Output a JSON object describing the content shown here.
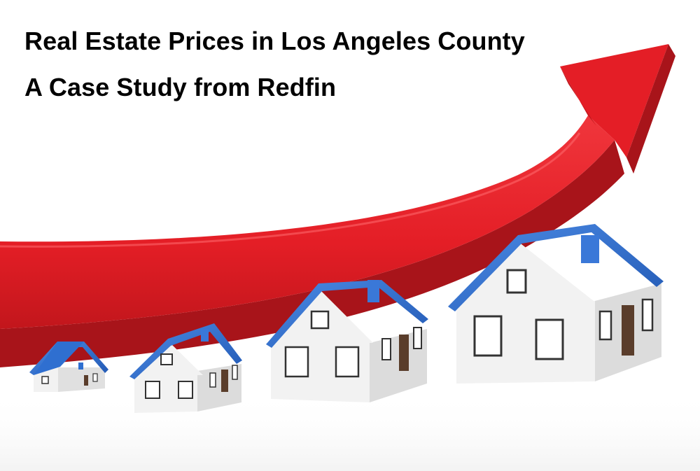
{
  "title": {
    "line1": "Real Estate Prices in Los Angeles County",
    "line2": "A Case Study from Redfin"
  },
  "colors": {
    "arrow": "#e41e26",
    "arrow_dark": "#a8141a",
    "roof": "#2f6fd0",
    "roof_dark": "#1f4e9c",
    "wall_front": "#f2f2f2",
    "wall_side": "#d9d9d9",
    "door": "#5a3d2b",
    "text": "#000000"
  },
  "illustration": {
    "subject": "red rising arrow above four houses of increasing size",
    "icons": [
      "rising-arrow-icon",
      "house-icon"
    ]
  }
}
